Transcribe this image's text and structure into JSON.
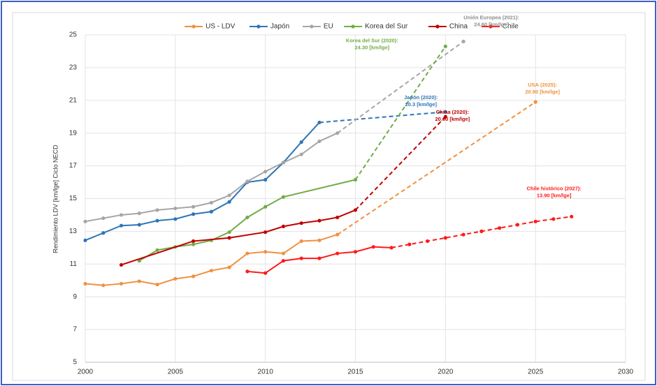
{
  "chart_data": {
    "type": "line",
    "y_label": "Rendimiento LDV [km/lge] Ciclo NECD",
    "xlim": [
      2000,
      2030
    ],
    "xticks": [
      2000,
      2005,
      2010,
      2015,
      2020,
      2025,
      2030
    ],
    "ylim": [
      5,
      25
    ],
    "yticks": [
      5,
      7,
      9,
      11,
      13,
      15,
      17,
      19,
      21,
      23,
      25
    ],
    "grid": true,
    "legend": "top",
    "series": [
      {
        "name": "US - LDV",
        "color": "#f0913f",
        "x": [
          2000,
          2001,
          2002,
          2003,
          2004,
          2005,
          2006,
          2007,
          2008,
          2009,
          2010,
          2011,
          2012,
          2013,
          2014,
          2025
        ],
        "values": [
          9.8,
          9.7,
          9.8,
          9.95,
          9.75,
          10.1,
          10.25,
          10.6,
          10.8,
          11.65,
          11.75,
          11.65,
          12.4,
          12.45,
          12.8,
          20.9
        ],
        "dashed_from": 14
      },
      {
        "name": "Japón",
        "color": "#2e75b6",
        "x": [
          2000,
          2001,
          2002,
          2003,
          2004,
          2005,
          2006,
          2007,
          2008,
          2009,
          2010,
          2011,
          2012,
          2013,
          2020
        ],
        "values": [
          12.45,
          12.9,
          13.35,
          13.4,
          13.65,
          13.75,
          14.05,
          14.2,
          14.8,
          16.0,
          16.15,
          17.2,
          18.45,
          19.65,
          20.3
        ],
        "dashed_from": 13
      },
      {
        "name": "EU",
        "color": "#a6a6a6",
        "x": [
          2000,
          2001,
          2002,
          2003,
          2004,
          2005,
          2006,
          2007,
          2008,
          2009,
          2010,
          2011,
          2012,
          2013,
          2014,
          2021
        ],
        "values": [
          13.6,
          13.8,
          14.0,
          14.1,
          14.3,
          14.4,
          14.5,
          14.75,
          15.2,
          16.05,
          16.65,
          17.2,
          17.7,
          18.5,
          19.0,
          24.6
        ],
        "dashed_from": 14
      },
      {
        "name": "Korea del Sur",
        "color": "#70ad47",
        "x": [
          2003,
          2004,
          2005,
          2006,
          2007,
          2008,
          2009,
          2010,
          2011,
          2015,
          2020
        ],
        "values": [
          11.2,
          11.85,
          12.05,
          12.2,
          12.45,
          12.95,
          13.85,
          14.5,
          15.1,
          16.15,
          24.3
        ],
        "dashed_from": 9
      },
      {
        "name": "China",
        "color": "#c00000",
        "x": [
          2002,
          2006,
          2008,
          2010,
          2011,
          2012,
          2013,
          2014,
          2015,
          2020
        ],
        "values": [
          10.95,
          12.4,
          12.6,
          12.95,
          13.3,
          13.5,
          13.65,
          13.85,
          14.3,
          20.0
        ],
        "dashed_from": 8
      },
      {
        "name": "Chile",
        "color": "#ff1a1a",
        "x": [
          2009,
          2010,
          2011,
          2012,
          2013,
          2014,
          2015,
          2016,
          2017,
          2018,
          2019,
          2020,
          2021,
          2022,
          2023,
          2024,
          2025,
          2026,
          2027
        ],
        "values": [
          10.55,
          10.45,
          11.2,
          11.35,
          11.35,
          11.65,
          11.75,
          12.05,
          12.0,
          12.2,
          12.4,
          12.6,
          12.8,
          13.0,
          13.2,
          13.4,
          13.6,
          13.75,
          13.9
        ],
        "dashed_from": 8
      }
    ],
    "annotations": [
      {
        "text": [
          "Korea del Sur (2020):",
          "24.30 [km/lge]"
        ],
        "color": "#70ad47"
      },
      {
        "text": [
          "Unión Europea (2021):",
          "24.60 [km/lge]"
        ],
        "color": "#8c8c8c"
      },
      {
        "text": [
          "Japón (2020):",
          "20.3 [km/lge]"
        ],
        "color": "#2e75b6"
      },
      {
        "text": [
          "USA (2025):",
          "20.90 [km/lge]"
        ],
        "color": "#f0913f"
      },
      {
        "text": [
          "China (2020):",
          "20.00 [km/lge]"
        ],
        "color": "#c00000"
      },
      {
        "text": [
          "Chile histórico (2027):",
          "13.90 [km/lge]"
        ],
        "color": "#ff1a1a"
      }
    ]
  }
}
